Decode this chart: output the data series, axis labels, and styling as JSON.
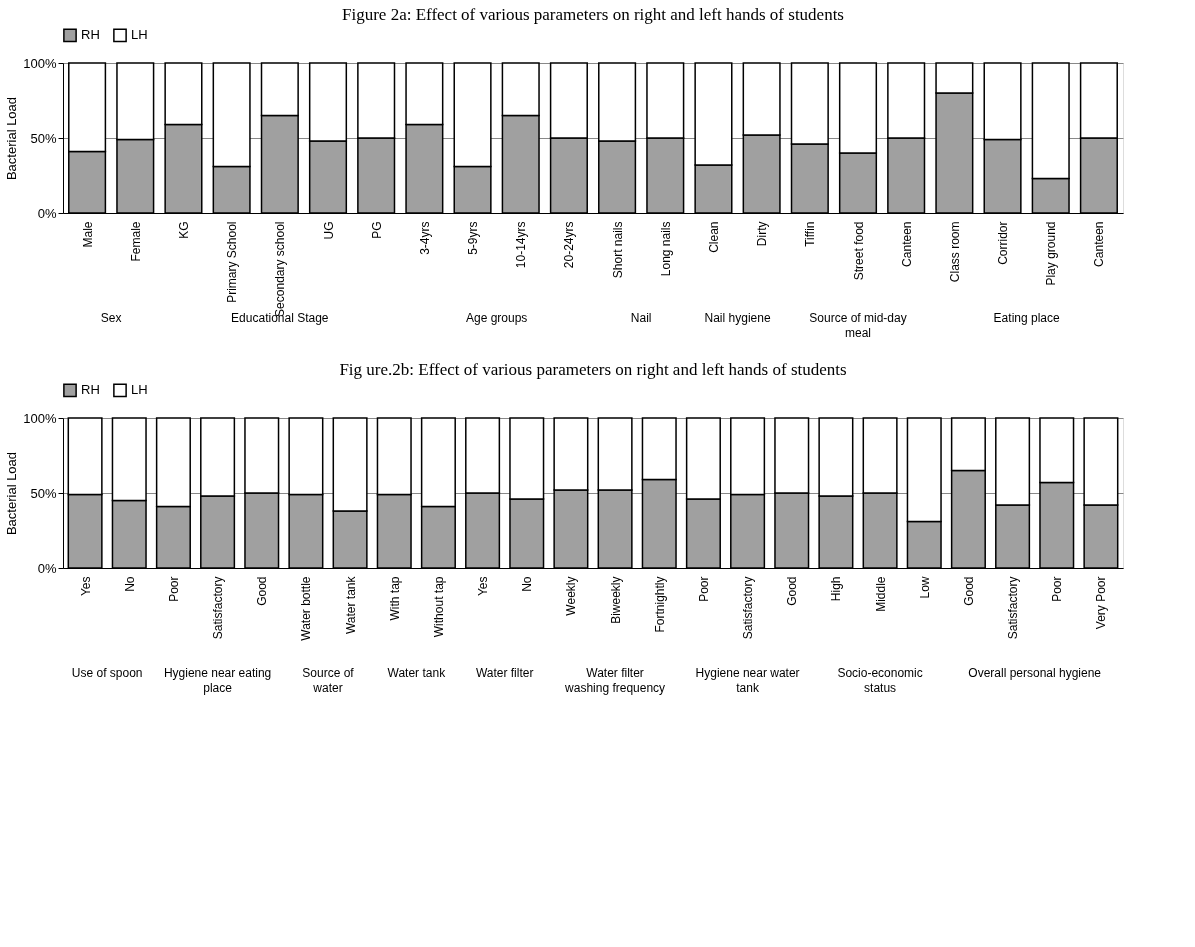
{
  "chart_data": [
    {
      "type": "bar",
      "stacked": true,
      "title": "Figure 2a: Effect of various parameters on right and left hands of students",
      "ylabel": "Bacterial Load",
      "categories": [
        "Male",
        "Female",
        "KG",
        "Primary School",
        "Secondary school",
        "UG",
        "PG",
        "3-4yrs",
        "5-9yrs",
        "10-14yrs",
        "20-24yrs",
        "Short nails",
        "Long nails",
        "Clean",
        "Dirty",
        "Tiffin",
        "Street food",
        "Canteen",
        "Class room",
        "Corridor",
        "Play ground",
        "Canteen"
      ],
      "series": [
        {
          "name": "RH",
          "color": "#a0a0a0",
          "values": [
            41,
            49,
            59,
            31,
            65,
            48,
            50,
            59,
            31,
            65,
            50,
            48,
            50,
            32,
            52,
            46,
            40,
            50,
            80,
            49,
            23,
            50
          ]
        },
        {
          "name": "LH",
          "color": "#ffffff",
          "values": [
            59,
            51,
            41,
            69,
            35,
            52,
            50,
            41,
            69,
            35,
            50,
            52,
            50,
            68,
            48,
            54,
            60,
            50,
            20,
            51,
            77,
            50
          ]
        }
      ],
      "ylim": [
        0,
        100
      ],
      "yticks": [
        {
          "value": 0,
          "label": "0%"
        },
        {
          "value": 50,
          "label": "50%"
        },
        {
          "value": 100,
          "label": "100%"
        }
      ],
      "grid": "y",
      "legend": "top",
      "annotations": [
        "Sex",
        "Educational Stage",
        "Age groups",
        "Nail",
        "Nail hygiene",
        "Source of mid-day meal",
        "Eating place"
      ]
    },
    {
      "type": "bar",
      "stacked": true,
      "title": "Fig ure.2b: Effect of various parameters on right and left hands of students",
      "ylabel": "Bacterial Load",
      "categories": [
        "Yes",
        "No",
        "Poor",
        "Satisfactory",
        "Good",
        "Water bottle",
        "Water tank",
        "With tap",
        "Without tap",
        "Yes",
        "No",
        "Weekly",
        "Biweekly",
        "Fortnightly",
        "Poor",
        "Satisfactory",
        "Good",
        "High",
        "Middle",
        "Low",
        "Good",
        "Satisfactory",
        "Poor",
        "Very Poor"
      ],
      "series": [
        {
          "name": "RH",
          "color": "#a0a0a0",
          "values": [
            49,
            45,
            41,
            48,
            50,
            49,
            38,
            49,
            41,
            50,
            46,
            52,
            52,
            59,
            46,
            49,
            50,
            48,
            50,
            31,
            65,
            42,
            57,
            42
          ]
        },
        {
          "name": "LH",
          "color": "#ffffff",
          "values": [
            51,
            55,
            59,
            52,
            50,
            51,
            62,
            51,
            59,
            50,
            54,
            48,
            48,
            41,
            54,
            51,
            50,
            52,
            50,
            69,
            35,
            58,
            43,
            58
          ]
        }
      ],
      "ylim": [
        0,
        100
      ],
      "yticks": [
        {
          "value": 0,
          "label": "0%"
        },
        {
          "value": 50,
          "label": "50%"
        },
        {
          "value": 100,
          "label": "100%"
        }
      ],
      "grid": "y",
      "legend": "top",
      "annotations": [
        "Use of spoon",
        "Hygiene near eating place",
        "Source of water",
        "Water tank",
        "Water filter",
        "Water filter washing frequency",
        "Hygiene near water tank",
        "Socio-economic status",
        "Overall personal hygiene"
      ]
    }
  ]
}
